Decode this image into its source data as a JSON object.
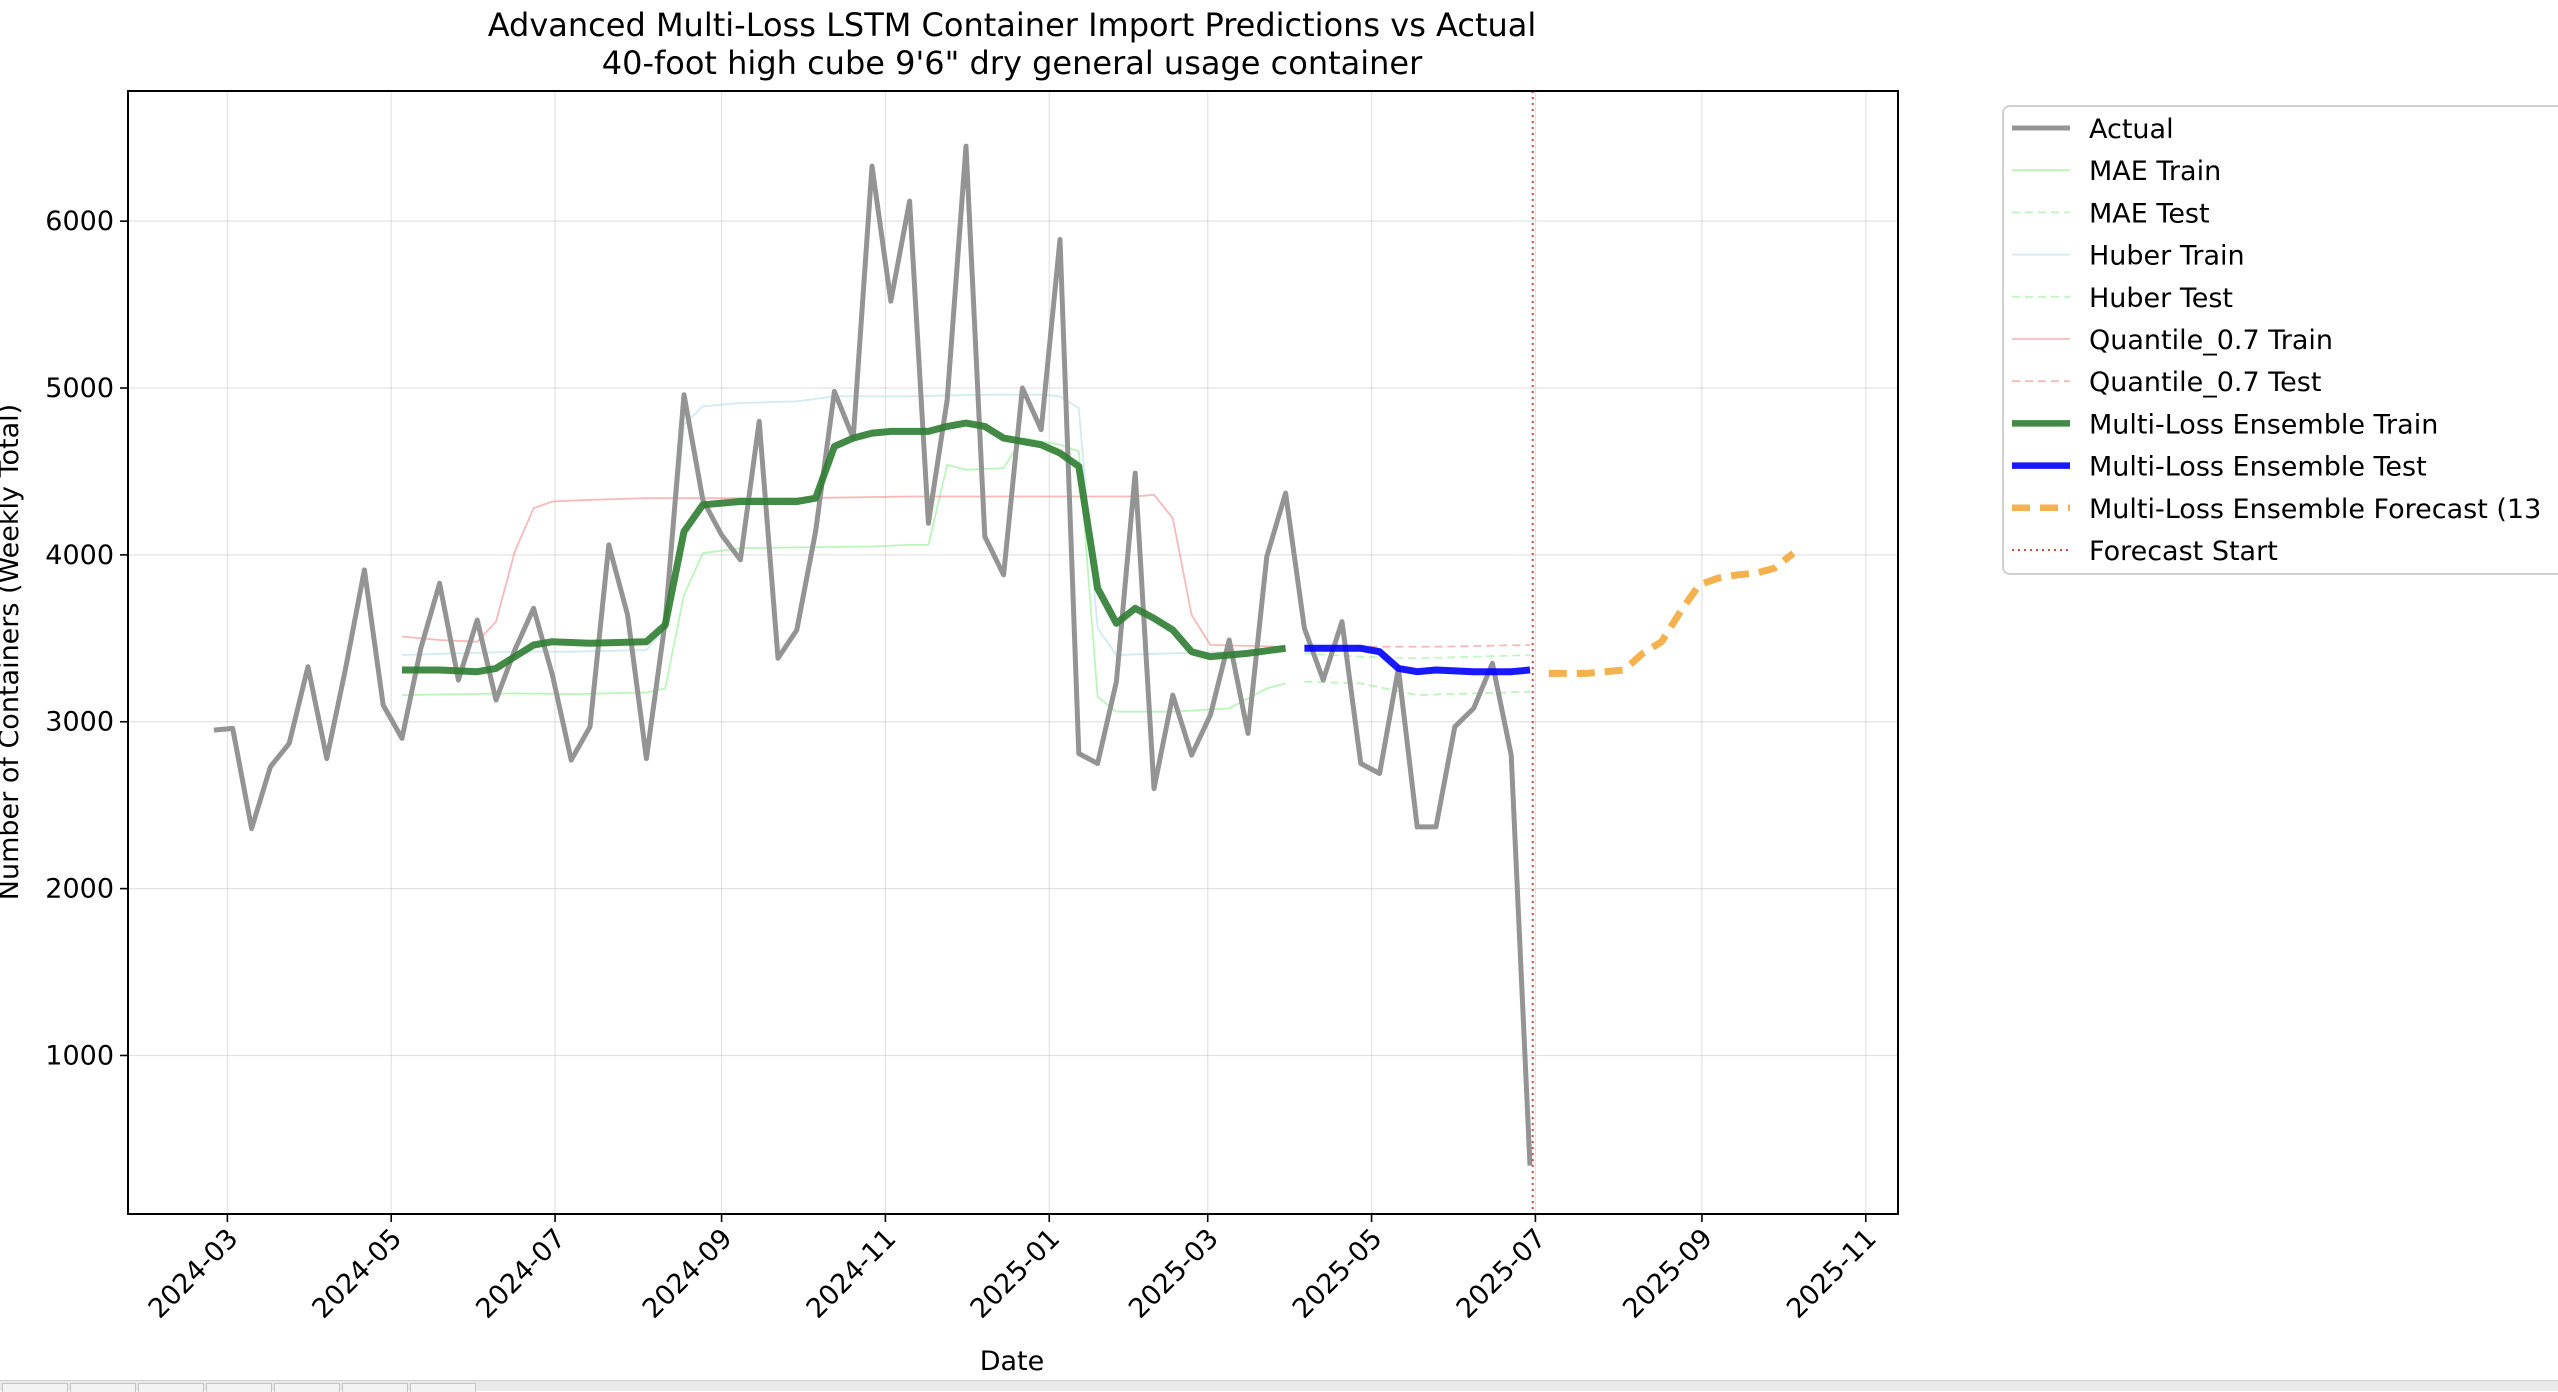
{
  "chart_data": {
    "type": "line",
    "title": "Advanced Multi-Loss LSTM Container Import Predictions vs Actual",
    "subtitle": "40-foot high cube 9'6\" dry general usage container",
    "xlabel": "Date",
    "ylabel": "Number of Containers (Weekly Total)",
    "xlim": [
      "2024-01-24",
      "2025-11-13"
    ],
    "ylim": [
      50,
      6780
    ],
    "x_ticks": [
      "2024-03",
      "2024-05",
      "2024-07",
      "2024-09",
      "2024-11",
      "2025-01",
      "2025-03",
      "2025-05",
      "2025-07",
      "2025-09",
      "2025-11"
    ],
    "y_ticks": [
      1000,
      2000,
      3000,
      4000,
      5000,
      6000
    ],
    "grid": true,
    "legend_position": "upper right, outside plot area",
    "forecast_start": "2025-06-30",
    "series": [
      {
        "name": "Actual",
        "color": "#949494",
        "style": "solid",
        "points": [
          [
            "2024-02-25",
            2950
          ],
          [
            "2024-03-03",
            2960
          ],
          [
            "2024-03-10",
            2360
          ],
          [
            "2024-03-17",
            2730
          ],
          [
            "2024-03-24",
            2870
          ],
          [
            "2024-03-31",
            3330
          ],
          [
            "2024-04-07",
            2780
          ],
          [
            "2024-04-14",
            3320
          ],
          [
            "2024-04-21",
            3910
          ],
          [
            "2024-04-28",
            3100
          ],
          [
            "2024-05-05",
            2900
          ],
          [
            "2024-05-12",
            3440
          ],
          [
            "2024-05-19",
            3830
          ],
          [
            "2024-05-26",
            3250
          ],
          [
            "2024-06-02",
            3610
          ],
          [
            "2024-06-09",
            3130
          ],
          [
            "2024-06-16",
            3430
          ],
          [
            "2024-06-23",
            3680
          ],
          [
            "2024-06-30",
            3280
          ],
          [
            "2024-07-07",
            2770
          ],
          [
            "2024-07-14",
            2970
          ],
          [
            "2024-07-21",
            4060
          ],
          [
            "2024-07-28",
            3640
          ],
          [
            "2024-08-04",
            2780
          ],
          [
            "2024-08-11",
            3600
          ],
          [
            "2024-08-18",
            4960
          ],
          [
            "2024-08-25",
            4330
          ],
          [
            "2024-09-01",
            4120
          ],
          [
            "2024-09-08",
            3970
          ],
          [
            "2024-09-15",
            4800
          ],
          [
            "2024-09-22",
            3380
          ],
          [
            "2024-09-29",
            3550
          ],
          [
            "2024-10-06",
            4140
          ],
          [
            "2024-10-13",
            4980
          ],
          [
            "2024-10-20",
            4700
          ],
          [
            "2024-10-27",
            6330
          ],
          [
            "2024-11-03",
            5520
          ],
          [
            "2024-11-10",
            6120
          ],
          [
            "2024-11-17",
            4190
          ],
          [
            "2024-11-24",
            4930
          ],
          [
            "2024-12-01",
            6450
          ],
          [
            "2024-12-08",
            4110
          ],
          [
            "2024-12-15",
            3880
          ],
          [
            "2024-12-22",
            5000
          ],
          [
            "2024-12-29",
            4750
          ],
          [
            "2025-01-05",
            5890
          ],
          [
            "2025-01-12",
            2810
          ],
          [
            "2025-01-19",
            2750
          ],
          [
            "2025-01-26",
            3240
          ],
          [
            "2025-02-02",
            4490
          ],
          [
            "2025-02-09",
            2600
          ],
          [
            "2025-02-16",
            3160
          ],
          [
            "2025-02-23",
            2800
          ],
          [
            "2025-03-02",
            3040
          ],
          [
            "2025-03-09",
            3490
          ],
          [
            "2025-03-16",
            2930
          ],
          [
            "2025-03-23",
            3990
          ],
          [
            "2025-03-30",
            4370
          ],
          [
            "2025-04-06",
            3560
          ],
          [
            "2025-04-13",
            3250
          ],
          [
            "2025-04-20",
            3600
          ],
          [
            "2025-04-27",
            2750
          ],
          [
            "2025-05-04",
            2690
          ],
          [
            "2025-05-11",
            3320
          ],
          [
            "2025-05-18",
            2370
          ],
          [
            "2025-05-25",
            2370
          ],
          [
            "2025-06-01",
            2970
          ],
          [
            "2025-06-08",
            3080
          ],
          [
            "2025-06-15",
            3350
          ],
          [
            "2025-06-22",
            2800
          ],
          [
            "2025-06-29",
            340
          ]
        ]
      },
      {
        "name": "MAE Train",
        "color": "#90ee90",
        "style": "solid",
        "points": [
          [
            "2024-05-05",
            3160
          ],
          [
            "2024-05-26",
            3165
          ],
          [
            "2024-06-16",
            3170
          ],
          [
            "2024-07-07",
            3165
          ],
          [
            "2024-08-04",
            3175
          ],
          [
            "2024-08-11",
            3200
          ],
          [
            "2024-08-18",
            3760
          ],
          [
            "2024-08-25",
            4010
          ],
          [
            "2024-09-08",
            4040
          ],
          [
            "2024-09-29",
            4045
          ],
          [
            "2024-10-27",
            4050
          ],
          [
            "2024-11-10",
            4060
          ],
          [
            "2024-11-17",
            4060
          ],
          [
            "2024-11-24",
            4540
          ],
          [
            "2024-12-01",
            4510
          ],
          [
            "2024-12-15",
            4520
          ],
          [
            "2024-12-22",
            4700
          ],
          [
            "2024-12-29",
            4680
          ],
          [
            "2025-01-05",
            4660
          ],
          [
            "2025-01-12",
            4620
          ],
          [
            "2025-01-19",
            3150
          ],
          [
            "2025-01-26",
            3060
          ],
          [
            "2025-02-16",
            3060
          ],
          [
            "2025-03-09",
            3080
          ],
          [
            "2025-03-23",
            3200
          ],
          [
            "2025-03-30",
            3230
          ]
        ]
      },
      {
        "name": "MAE Test",
        "color": "#90ee90",
        "style": "dashed",
        "points": [
          [
            "2025-04-06",
            3240
          ],
          [
            "2025-04-27",
            3230
          ],
          [
            "2025-05-18",
            3160
          ],
          [
            "2025-06-08",
            3170
          ],
          [
            "2025-06-29",
            3180
          ]
        ]
      },
      {
        "name": "Huber Train",
        "color": "#add8e6",
        "style": "solid",
        "points": [
          [
            "2024-05-05",
            3400
          ],
          [
            "2024-05-26",
            3410
          ],
          [
            "2024-06-16",
            3420
          ],
          [
            "2024-07-07",
            3420
          ],
          [
            "2024-08-04",
            3430
          ],
          [
            "2024-08-11",
            3560
          ],
          [
            "2024-08-18",
            4780
          ],
          [
            "2024-08-25",
            4890
          ],
          [
            "2024-09-08",
            4910
          ],
          [
            "2024-09-29",
            4920
          ],
          [
            "2024-10-13",
            4950
          ],
          [
            "2024-11-10",
            4950
          ],
          [
            "2024-12-08",
            4960
          ],
          [
            "2024-12-29",
            4960
          ],
          [
            "2025-01-05",
            4950
          ],
          [
            "2025-01-12",
            4880
          ],
          [
            "2025-01-19",
            3560
          ],
          [
            "2025-01-26",
            3400
          ],
          [
            "2025-02-16",
            3410
          ],
          [
            "2025-03-09",
            3420
          ],
          [
            "2025-03-30",
            3430
          ]
        ]
      },
      {
        "name": "Huber Test",
        "color": "#90ee90",
        "style": "dashed",
        "points": [
          [
            "2025-04-06",
            3410
          ],
          [
            "2025-04-27",
            3390
          ],
          [
            "2025-05-18",
            3380
          ],
          [
            "2025-06-08",
            3390
          ],
          [
            "2025-06-29",
            3400
          ]
        ]
      },
      {
        "name": "Quantile_0.7 Train",
        "color": "#f08080",
        "style": "solid",
        "points": [
          [
            "2024-05-05",
            3510
          ],
          [
            "2024-05-19",
            3490
          ],
          [
            "2024-06-02",
            3480
          ],
          [
            "2024-06-09",
            3600
          ],
          [
            "2024-06-16",
            4020
          ],
          [
            "2024-06-23",
            4280
          ],
          [
            "2024-06-30",
            4320
          ],
          [
            "2024-07-14",
            4330
          ],
          [
            "2024-08-04",
            4340
          ],
          [
            "2024-09-29",
            4340
          ],
          [
            "2024-11-10",
            4350
          ],
          [
            "2024-12-08",
            4350
          ],
          [
            "2025-01-05",
            4350
          ],
          [
            "2025-02-02",
            4350
          ],
          [
            "2025-02-09",
            4360
          ],
          [
            "2025-02-16",
            4220
          ],
          [
            "2025-02-23",
            3640
          ],
          [
            "2025-03-02",
            3460
          ],
          [
            "2025-03-30",
            3450
          ]
        ]
      },
      {
        "name": "Quantile_0.7 Test",
        "color": "#f08080",
        "style": "dashed",
        "points": [
          [
            "2025-04-06",
            3450
          ],
          [
            "2025-05-04",
            3450
          ],
          [
            "2025-05-25",
            3450
          ],
          [
            "2025-06-29",
            3460
          ]
        ]
      },
      {
        "name": "Multi-Loss Ensemble Train",
        "color": "#2e7d32",
        "style": "solid",
        "points": [
          [
            "2024-05-05",
            3310
          ],
          [
            "2024-05-19",
            3310
          ],
          [
            "2024-06-02",
            3300
          ],
          [
            "2024-06-09",
            3320
          ],
          [
            "2024-06-16",
            3390
          ],
          [
            "2024-06-23",
            3460
          ],
          [
            "2024-06-30",
            3480
          ],
          [
            "2024-07-14",
            3470
          ],
          [
            "2024-08-04",
            3480
          ],
          [
            "2024-08-11",
            3580
          ],
          [
            "2024-08-18",
            4140
          ],
          [
            "2024-08-25",
            4300
          ],
          [
            "2024-09-08",
            4320
          ],
          [
            "2024-09-29",
            4320
          ],
          [
            "2024-10-06",
            4340
          ],
          [
            "2024-10-13",
            4650
          ],
          [
            "2024-10-20",
            4700
          ],
          [
            "2024-10-27",
            4730
          ],
          [
            "2024-11-03",
            4740
          ],
          [
            "2024-11-17",
            4740
          ],
          [
            "2024-11-24",
            4770
          ],
          [
            "2024-12-01",
            4790
          ],
          [
            "2024-12-08",
            4770
          ],
          [
            "2024-12-15",
            4700
          ],
          [
            "2024-12-29",
            4660
          ],
          [
            "2025-01-05",
            4610
          ],
          [
            "2025-01-12",
            4530
          ],
          [
            "2025-01-19",
            3800
          ],
          [
            "2025-01-26",
            3590
          ],
          [
            "2025-02-02",
            3680
          ],
          [
            "2025-02-09",
            3620
          ],
          [
            "2025-02-16",
            3550
          ],
          [
            "2025-02-23",
            3420
          ],
          [
            "2025-03-02",
            3390
          ],
          [
            "2025-03-09",
            3400
          ],
          [
            "2025-03-16",
            3410
          ],
          [
            "2025-03-30",
            3440
          ]
        ]
      },
      {
        "name": "Multi-Loss Ensemble Test",
        "color": "#0000ff",
        "style": "solid",
        "points": [
          [
            "2025-04-06",
            3440
          ],
          [
            "2025-04-27",
            3440
          ],
          [
            "2025-05-04",
            3420
          ],
          [
            "2025-05-11",
            3320
          ],
          [
            "2025-05-18",
            3300
          ],
          [
            "2025-05-25",
            3310
          ],
          [
            "2025-06-08",
            3300
          ],
          [
            "2025-06-22",
            3300
          ],
          [
            "2025-06-29",
            3310
          ]
        ]
      },
      {
        "name": "Multi-Loss Ensemble Forecast (13",
        "color": "#f4a93a",
        "style": "dashed",
        "points": [
          [
            "2025-07-06",
            3290
          ],
          [
            "2025-07-20",
            3290
          ],
          [
            "2025-08-03",
            3310
          ],
          [
            "2025-08-10",
            3410
          ],
          [
            "2025-08-17",
            3480
          ],
          [
            "2025-08-24",
            3660
          ],
          [
            "2025-08-31",
            3820
          ],
          [
            "2025-09-07",
            3860
          ],
          [
            "2025-09-14",
            3880
          ],
          [
            "2025-09-21",
            3890
          ],
          [
            "2025-09-28",
            3920
          ],
          [
            "2025-10-05",
            4010
          ]
        ]
      },
      {
        "name": "Forecast Start",
        "color": "#e03030",
        "style": "dotted",
        "vertical_at": "2025-06-30"
      }
    ]
  }
}
